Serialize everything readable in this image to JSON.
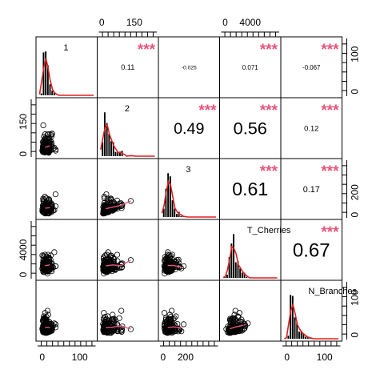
{
  "chart_data": {
    "type": "scatter",
    "title": "",
    "variables": [
      "1",
      "2",
      "3",
      "T_Cherries",
      "N_Branches"
    ],
    "axis_ticks": {
      "1": {
        "labels": [
          "0",
          "100"
        ],
        "values": [
          0,
          100
        ],
        "range": [
          -10,
          140
        ]
      },
      "2": {
        "labels": [
          "0",
          "150"
        ],
        "values": [
          0,
          150
        ],
        "range": [
          -10,
          250
        ]
      },
      "3": {
        "labels": [
          "0",
          "200"
        ],
        "values": [
          0,
          200
        ],
        "range": [
          -20,
          480
        ]
      },
      "T_Cherries": {
        "labels": [
          "0",
          "4000"
        ],
        "values": [
          0,
          4000
        ],
        "range": [
          -500,
          8500
        ]
      },
      "N_Branches": {
        "labels": [
          "0",
          "100"
        ],
        "values": [
          0,
          100
        ],
        "range": [
          -10,
          140
        ]
      }
    },
    "top_axes": [
      {
        "column": 2,
        "variable": "2"
      },
      {
        "column": 4,
        "variable": "T_Cherries"
      }
    ],
    "bottom_axes": [
      {
        "column": 1,
        "variable": "1"
      },
      {
        "column": 3,
        "variable": "3"
      },
      {
        "column": 5,
        "variable": "N_Branches"
      }
    ],
    "left_axes": [
      {
        "row": 2,
        "variable": "2"
      },
      {
        "row": 4,
        "variable": "T_Cherries"
      }
    ],
    "right_axes": [
      {
        "row": 1,
        "variable": "1"
      },
      {
        "row": 3,
        "variable": "3"
      },
      {
        "row": 5,
        "variable": "N_Branches"
      }
    ],
    "correlations": [
      {
        "row": 1,
        "col": 2,
        "r": "0.11",
        "stars": "***"
      },
      {
        "row": 1,
        "col": 3,
        "r": "-0.025",
        "stars": ""
      },
      {
        "row": 1,
        "col": 4,
        "r": "0.071",
        "stars": "***"
      },
      {
        "row": 1,
        "col": 5,
        "r": "-0.067",
        "stars": "***"
      },
      {
        "row": 2,
        "col": 3,
        "r": "0.49",
        "stars": "***"
      },
      {
        "row": 2,
        "col": 4,
        "r": "0.56",
        "stars": "***"
      },
      {
        "row": 2,
        "col": 5,
        "r": "0.12",
        "stars": "***"
      },
      {
        "row": 3,
        "col": 4,
        "r": "0.61",
        "stars": "***"
      },
      {
        "row": 3,
        "col": 5,
        "r": "0.17",
        "stars": "***"
      },
      {
        "row": 4,
        "col": 5,
        "r": "0.67",
        "stars": "***"
      }
    ],
    "colors": {
      "points": "#000000",
      "fit_line": "#e8557a",
      "stars": "#e8557a",
      "density": "#e02020",
      "histogram_fill": "#000000",
      "frame": "#000000"
    }
  }
}
